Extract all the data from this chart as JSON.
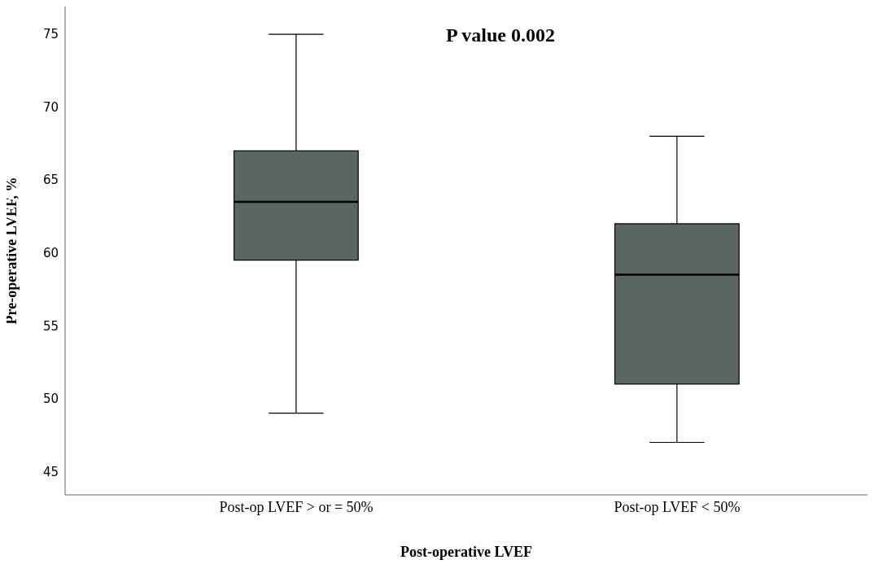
{
  "chart_data": {
    "type": "box",
    "categories": [
      "Post-op LVEF > or = 50%",
      "Post-op LVEF < 50%"
    ],
    "boxes": [
      {
        "low": 49,
        "q1": 59.5,
        "median": 63.5,
        "q3": 67,
        "high": 75
      },
      {
        "low": 47,
        "q1": 51,
        "median": 58.5,
        "q3": 62,
        "high": 68
      }
    ],
    "color": "#5a6660",
    "xlabel": "Post-operative LVEF",
    "ylabel": "Pre-operative LVEF, %",
    "ylim": [
      43.4,
      76.9
    ],
    "yticks": [
      45,
      50,
      55,
      60,
      65,
      70,
      75
    ],
    "grid": false,
    "annotations": [
      "P value 0.002"
    ]
  }
}
